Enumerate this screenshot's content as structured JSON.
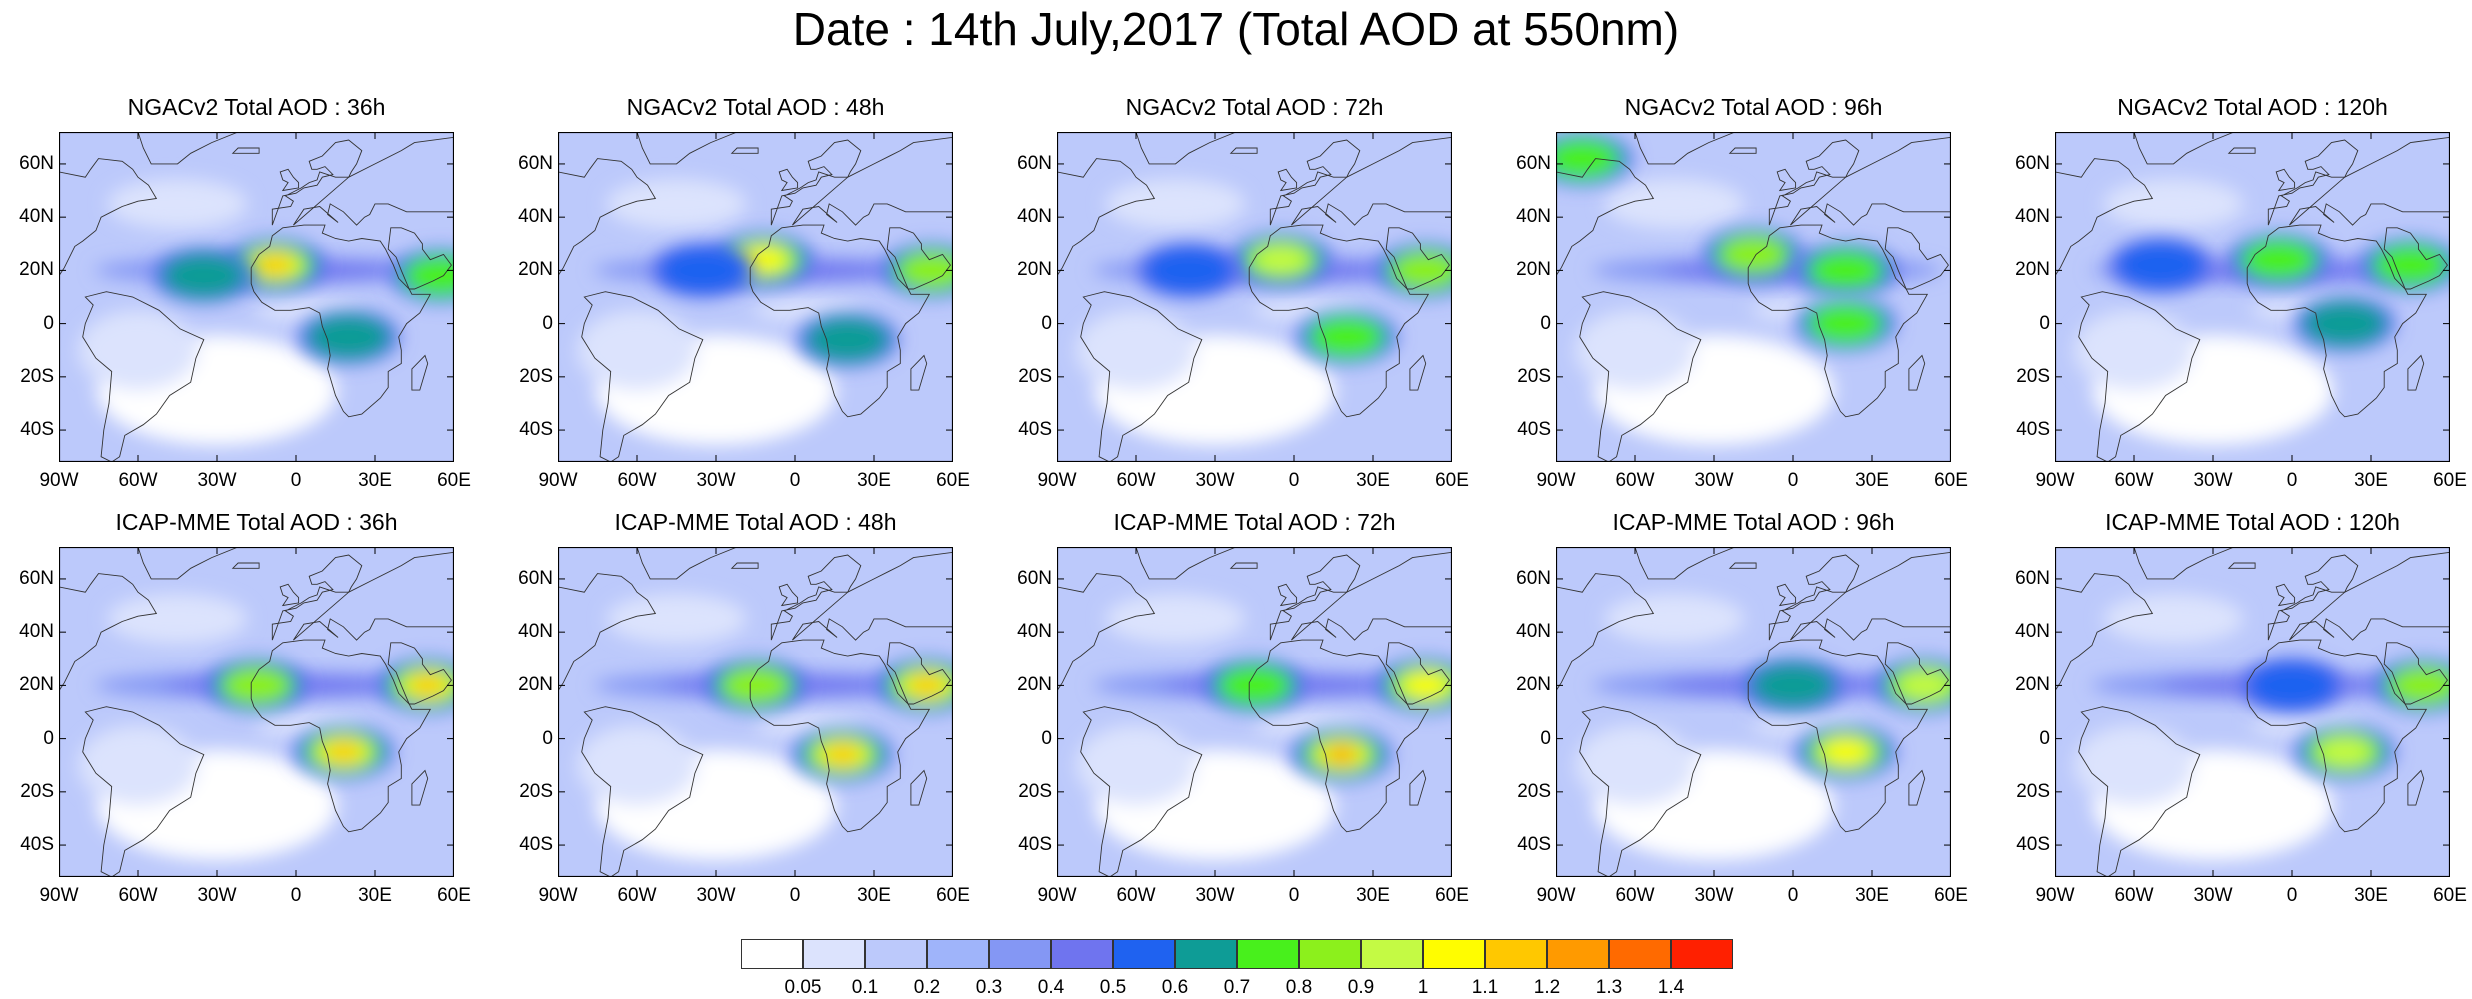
{
  "figure": {
    "title": "Date : 14th July,2017 (Total AOD at 550nm)"
  },
  "lat_labels": [
    "60N",
    "40N",
    "20N",
    "0",
    "20S",
    "40S"
  ],
  "lon_labels": [
    "90W",
    "60W",
    "30W",
    "0",
    "30E",
    "60E"
  ],
  "panels": [
    {
      "title": "NGACv2 Total AOD : 36h",
      "row": "NGACv2",
      "lead": "36h",
      "plumes": [
        {
          "lon": -8,
          "lat": 22,
          "level": 12
        },
        {
          "lon": 55,
          "lat": 18,
          "level": 8
        },
        {
          "lon": 20,
          "lat": -5,
          "level": 7
        },
        {
          "lon": -35,
          "lat": 18,
          "level": 7
        }
      ]
    },
    {
      "title": "NGACv2 Total AOD : 48h",
      "row": "NGACv2",
      "lead": "48h",
      "plumes": [
        {
          "lon": -12,
          "lat": 24,
          "level": 11
        },
        {
          "lon": 52,
          "lat": 20,
          "level": 9
        },
        {
          "lon": 20,
          "lat": -6,
          "level": 7
        },
        {
          "lon": -35,
          "lat": 20,
          "level": 6
        }
      ]
    },
    {
      "title": "NGACv2 Total AOD : 72h",
      "row": "NGACv2",
      "lead": "72h",
      "plumes": [
        {
          "lon": -5,
          "lat": 24,
          "level": 10
        },
        {
          "lon": 50,
          "lat": 20,
          "level": 9
        },
        {
          "lon": 20,
          "lat": -5,
          "level": 8
        },
        {
          "lon": -40,
          "lat": 20,
          "level": 6
        }
      ]
    },
    {
      "title": "NGACv2 Total AOD : 96h",
      "row": "NGACv2",
      "lead": "96h",
      "plumes": [
        {
          "lon": -15,
          "lat": 26,
          "level": 9
        },
        {
          "lon": 20,
          "lat": 20,
          "level": 8
        },
        {
          "lon": 20,
          "lat": 0,
          "level": 8
        },
        {
          "lon": -80,
          "lat": 62,
          "level": 8
        }
      ]
    },
    {
      "title": "NGACv2 Total AOD : 120h",
      "row": "NGACv2",
      "lead": "120h",
      "plumes": [
        {
          "lon": -5,
          "lat": 24,
          "level": 8
        },
        {
          "lon": 45,
          "lat": 22,
          "level": 8
        },
        {
          "lon": 20,
          "lat": 0,
          "level": 7
        },
        {
          "lon": -50,
          "lat": 22,
          "level": 6
        }
      ]
    },
    {
      "title": "ICAP-MME Total AOD : 36h",
      "row": "ICAP-MME",
      "lead": "36h",
      "plumes": [
        {
          "lon": -15,
          "lat": 20,
          "level": 9
        },
        {
          "lon": 50,
          "lat": 20,
          "level": 12
        },
        {
          "lon": 18,
          "lat": -5,
          "level": 12
        }
      ]
    },
    {
      "title": "ICAP-MME Total AOD : 48h",
      "row": "ICAP-MME",
      "lead": "48h",
      "plumes": [
        {
          "lon": -15,
          "lat": 20,
          "level": 9
        },
        {
          "lon": 50,
          "lat": 20,
          "level": 12
        },
        {
          "lon": 18,
          "lat": -6,
          "level": 12
        }
      ]
    },
    {
      "title": "ICAP-MME Total AOD : 72h",
      "row": "ICAP-MME",
      "lead": "72h",
      "plumes": [
        {
          "lon": -15,
          "lat": 20,
          "level": 8
        },
        {
          "lon": 50,
          "lat": 20,
          "level": 11
        },
        {
          "lon": 18,
          "lat": -6,
          "level": 13
        }
      ]
    },
    {
      "title": "ICAP-MME Total AOD : 96h",
      "row": "ICAP-MME",
      "lead": "96h",
      "plumes": [
        {
          "lon": 0,
          "lat": 20,
          "level": 7
        },
        {
          "lon": 50,
          "lat": 20,
          "level": 10
        },
        {
          "lon": 20,
          "lat": -5,
          "level": 11
        }
      ]
    },
    {
      "title": "ICAP-MME Total AOD : 120h",
      "row": "ICAP-MME",
      "lead": "120h",
      "plumes": [
        {
          "lon": 0,
          "lat": 20,
          "level": 6
        },
        {
          "lon": 50,
          "lat": 20,
          "level": 9
        },
        {
          "lon": 20,
          "lat": -5,
          "level": 10
        }
      ]
    }
  ],
  "colorbar": {
    "labels": [
      "0.05",
      "0.1",
      "0.2",
      "0.3",
      "0.4",
      "0.5",
      "0.6",
      "0.7",
      "0.8",
      "0.9",
      "1",
      "1.1",
      "1.2",
      "1.3",
      "1.4"
    ],
    "colors": [
      "#ffffff",
      "#dce3fd",
      "#bcc9fb",
      "#9fb4fa",
      "#8497f4",
      "#6f74ef",
      "#1f62f0",
      "#0e9c96",
      "#48f01c",
      "#8cf01c",
      "#c4fa44",
      "#fffd00",
      "#ffc800",
      "#ff9a00",
      "#ff6a00",
      "#ff2000"
    ]
  },
  "map_colors": {
    "background": "#c4cdfb",
    "ocean_light": "#ffffff",
    "land_outline": "#333333"
  }
}
